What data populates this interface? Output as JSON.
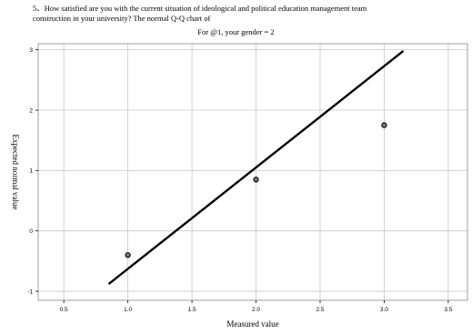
{
  "chart_data": {
    "type": "scatter",
    "title_lines": [
      "5、How satisfied are you with the current situation of ideological and political education management team",
      "construction in your university? The normal Q-Q chart of"
    ],
    "subtitle": "For @1, your gender = 2",
    "xlabel": "Measured value",
    "ylabel": "Expected normal value",
    "xlim": [
      0.3,
      3.65
    ],
    "ylim": [
      -1.15,
      3.1
    ],
    "x_ticks": [
      0.5,
      1.0,
      1.5,
      2.0,
      2.5,
      3.0,
      3.5
    ],
    "x_tick_labels": [
      "0.5",
      "1.0",
      "1.5",
      "2.0",
      "2.5",
      "3.0",
      "3.5"
    ],
    "y_ticks": [
      -1,
      0,
      1,
      2,
      3
    ],
    "y_tick_labels": [
      "-1",
      "0",
      "1",
      "2",
      "3"
    ],
    "grid": true,
    "points": [
      {
        "x": 1.0,
        "y": -0.4
      },
      {
        "x": 2.0,
        "y": 0.85
      },
      {
        "x": 3.0,
        "y": 1.75
      }
    ],
    "reference_line": {
      "x": [
        0.85,
        3.15
      ],
      "y": [
        -0.88,
        2.98
      ]
    },
    "colors": {
      "points": "#000000",
      "line": "#000000",
      "grid": "#c8c8c8",
      "frame": "#888888"
    }
  }
}
